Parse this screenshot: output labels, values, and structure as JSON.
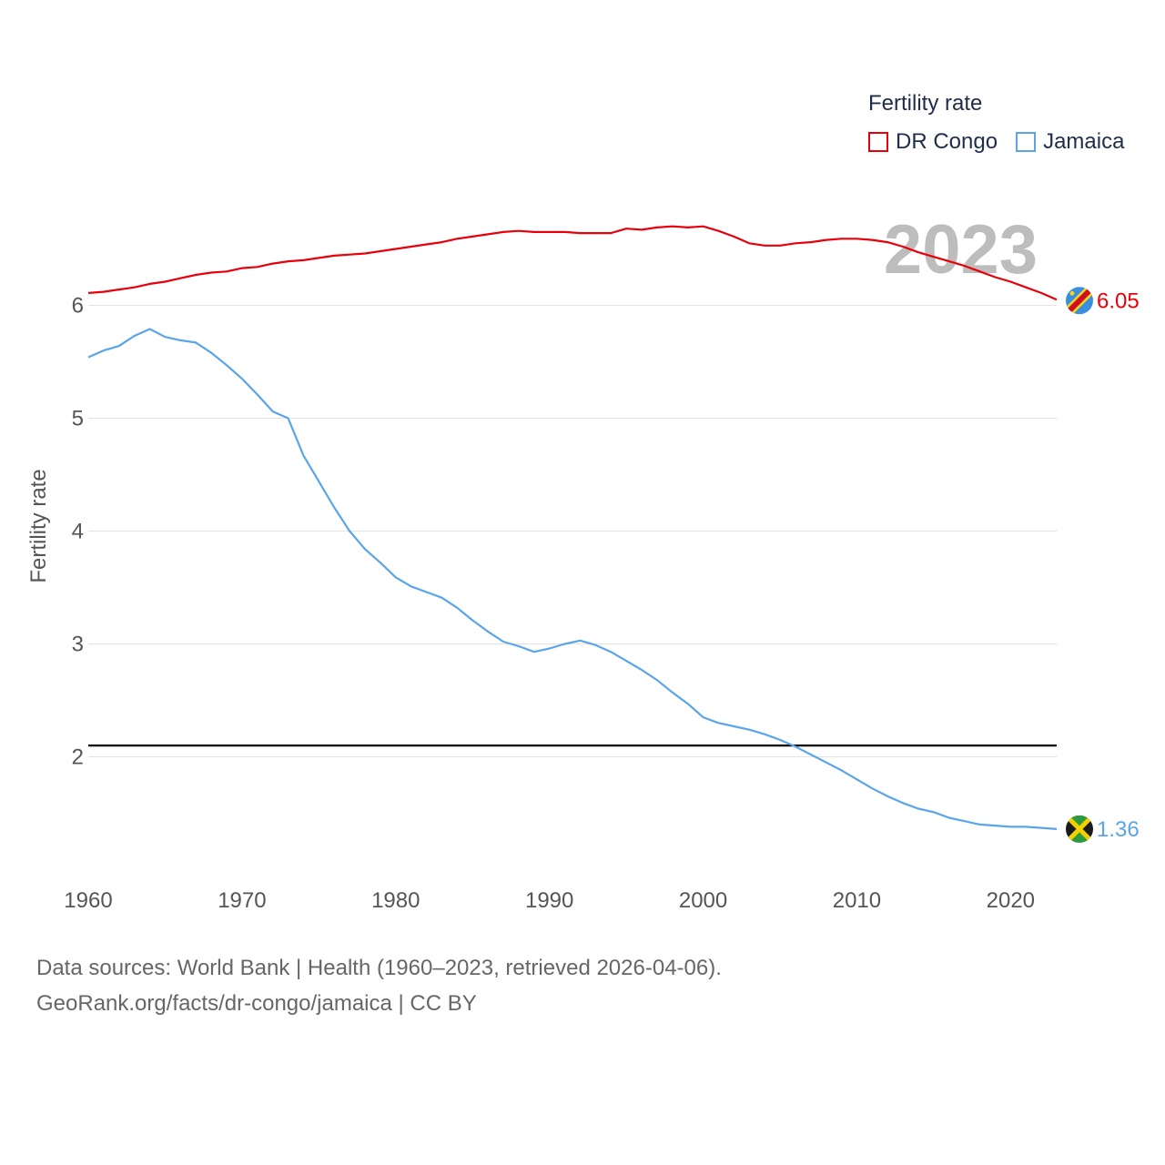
{
  "legend": {
    "title": "Fertility rate",
    "items": [
      {
        "label": "DR Congo",
        "color": "#e8000b"
      },
      {
        "label": "Jamaica",
        "color": "#5aa5ea"
      }
    ]
  },
  "source": {
    "line1": "Data sources: World Bank | Health (1960–2023, retrieved 2026-04-06).",
    "line2": "GeoRank.org/facts/dr-congo/jamaica | CC BY"
  },
  "chart_data": {
    "type": "line",
    "title": "",
    "current_year_label": "2023",
    "xlabel": "",
    "ylabel": "Fertility rate",
    "xlim": [
      1960,
      2023
    ],
    "ylim": [
      1,
      7
    ],
    "x_ticks": [
      1960,
      1970,
      1980,
      1990,
      2000,
      2010,
      2020
    ],
    "y_ticks": [
      2,
      3,
      4,
      5,
      6
    ],
    "reference_line": {
      "value": 2.1,
      "color": "#000000"
    },
    "x": [
      1960,
      1961,
      1962,
      1963,
      1964,
      1965,
      1966,
      1967,
      1968,
      1969,
      1970,
      1971,
      1972,
      1973,
      1974,
      1975,
      1976,
      1977,
      1978,
      1979,
      1980,
      1981,
      1982,
      1983,
      1984,
      1985,
      1986,
      1987,
      1988,
      1989,
      1990,
      1991,
      1992,
      1993,
      1994,
      1995,
      1996,
      1997,
      1998,
      1999,
      2000,
      2001,
      2002,
      2003,
      2004,
      2005,
      2006,
      2007,
      2008,
      2009,
      2010,
      2011,
      2012,
      2013,
      2014,
      2015,
      2016,
      2017,
      2018,
      2019,
      2020,
      2021,
      2022,
      2023
    ],
    "series": [
      {
        "name": "DR Congo",
        "color": "#e8000b",
        "end_label": "6.05",
        "values": [
          6.11,
          6.12,
          6.14,
          6.16,
          6.19,
          6.21,
          6.24,
          6.27,
          6.29,
          6.3,
          6.33,
          6.34,
          6.37,
          6.39,
          6.4,
          6.42,
          6.44,
          6.45,
          6.46,
          6.48,
          6.5,
          6.52,
          6.54,
          6.56,
          6.59,
          6.61,
          6.63,
          6.65,
          6.66,
          6.65,
          6.65,
          6.65,
          6.64,
          6.64,
          6.64,
          6.68,
          6.67,
          6.69,
          6.7,
          6.69,
          6.7,
          6.66,
          6.61,
          6.55,
          6.53,
          6.53,
          6.55,
          6.56,
          6.58,
          6.59,
          6.59,
          6.58,
          6.56,
          6.52,
          6.47,
          6.43,
          6.39,
          6.35,
          6.3,
          6.25,
          6.21,
          6.16,
          6.11,
          6.05
        ]
      },
      {
        "name": "Jamaica",
        "color": "#5aa5ea",
        "end_label": "1.36",
        "values": [
          5.54,
          5.6,
          5.64,
          5.73,
          5.79,
          5.72,
          5.69,
          5.67,
          5.58,
          5.47,
          5.35,
          5.21,
          5.06,
          5.0,
          4.67,
          4.44,
          4.21,
          4.0,
          3.84,
          3.72,
          3.59,
          3.51,
          3.46,
          3.41,
          3.32,
          3.21,
          3.11,
          3.02,
          2.98,
          2.93,
          2.96,
          3.0,
          3.03,
          2.99,
          2.93,
          2.85,
          2.77,
          2.68,
          2.57,
          2.47,
          2.35,
          2.3,
          2.27,
          2.24,
          2.2,
          2.15,
          2.09,
          2.02,
          1.95,
          1.88,
          1.8,
          1.72,
          1.65,
          1.59,
          1.54,
          1.51,
          1.46,
          1.43,
          1.4,
          1.39,
          1.38,
          1.38,
          1.37,
          1.36
        ]
      }
    ]
  }
}
